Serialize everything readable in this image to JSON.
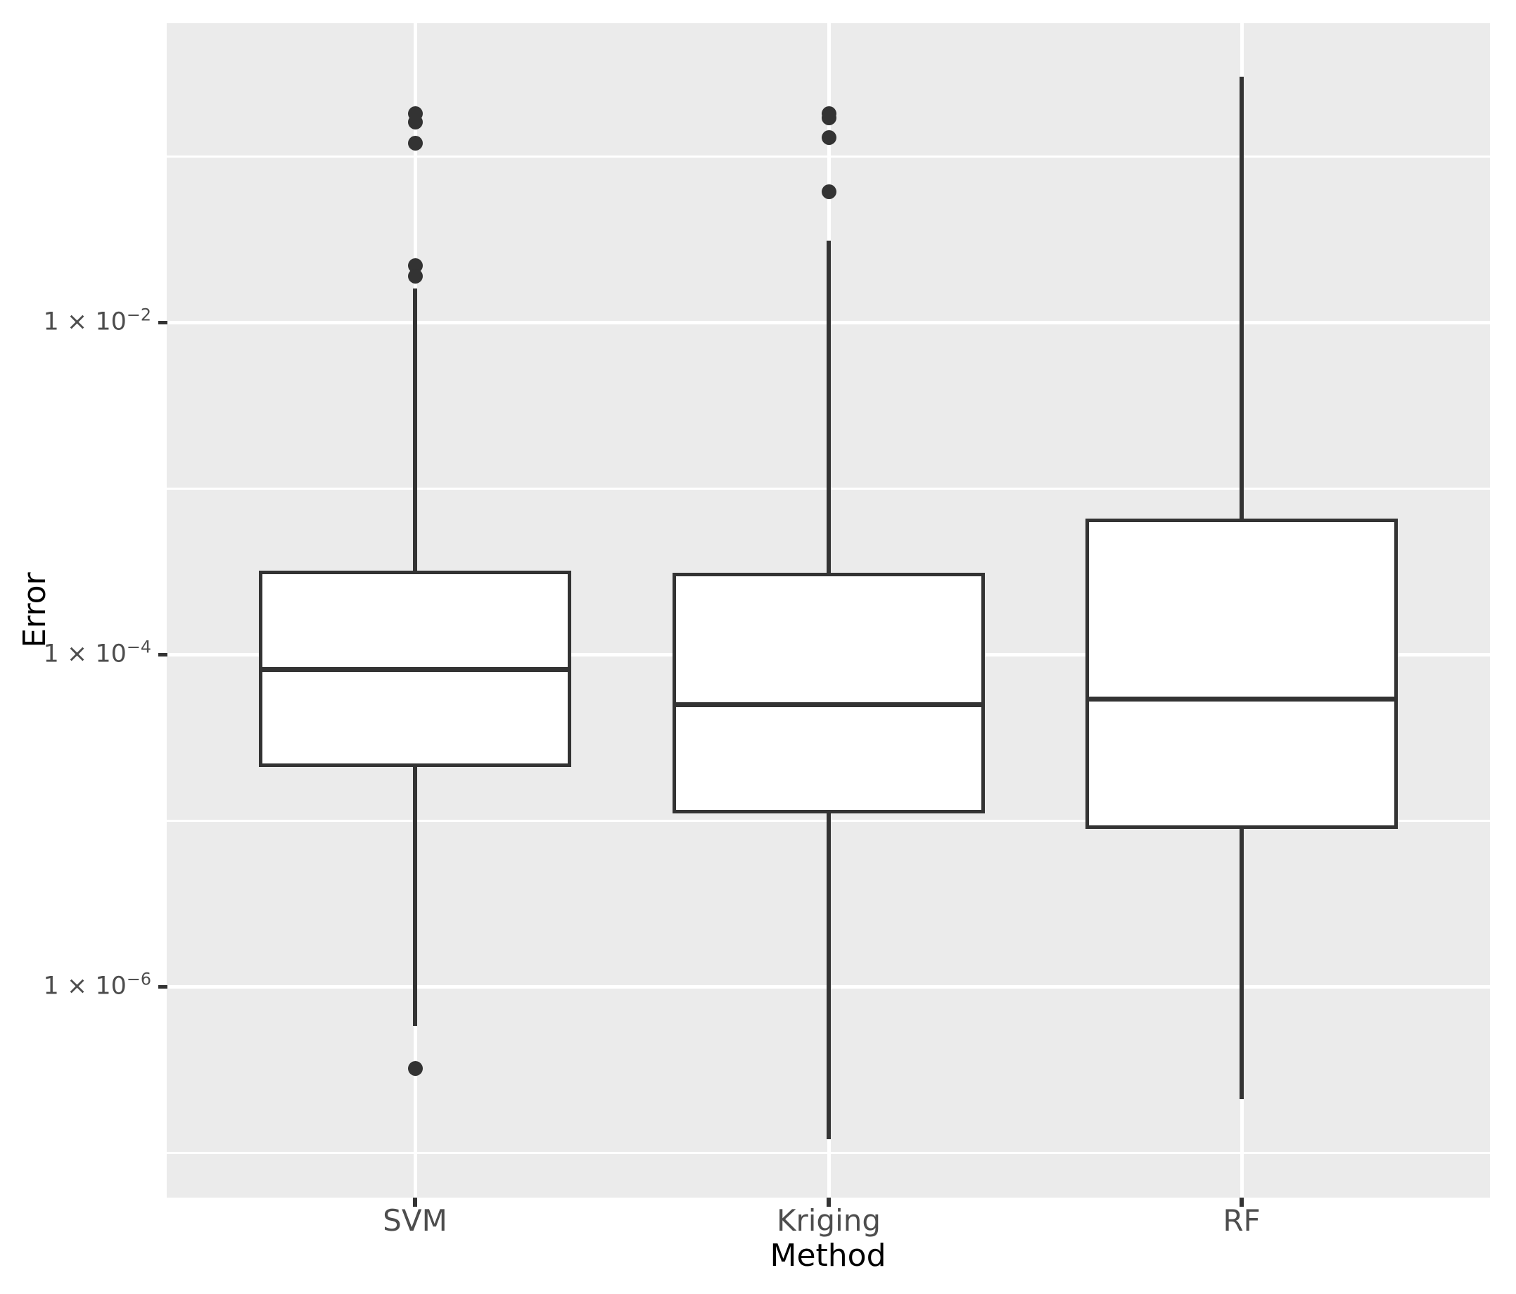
{
  "chart_data": {
    "type": "boxplot",
    "title": "",
    "xlabel": "Method",
    "ylabel": "Error",
    "x_axis": {
      "categories": [
        "SVM",
        "Kriging",
        "RF"
      ]
    },
    "y_axis": {
      "scale": "log10",
      "ticks": [
        {
          "label": "1 × 10^−2",
          "value": 0.01
        },
        {
          "label": "1 × 10^−4",
          "value": 0.0001
        },
        {
          "label": "1 × 10^−6",
          "value": 1e-06
        }
      ],
      "minor_gridline_values": [
        0.1,
        0.001,
        1e-05,
        1e-07
      ],
      "ylim_approx": [
        3e-08,
        0.63
      ],
      "grid": "major-and-minor"
    },
    "series": [
      {
        "name": "SVM",
        "whisker_low": 5.8e-07,
        "q1": 2.1e-05,
        "median": 8.1e-05,
        "q3": 0.00032,
        "whisker_high": 0.016,
        "outliers_high": [
          0.18,
          0.16,
          0.12,
          0.022,
          0.019
        ],
        "outliers_low": [
          3.2e-07
        ]
      },
      {
        "name": "Kriging",
        "whisker_low": 1.2e-07,
        "q1": 1.1e-05,
        "median": 5e-05,
        "q3": 0.00031,
        "whisker_high": 0.031,
        "outliers_high": [
          0.18,
          0.17,
          0.13,
          0.061
        ],
        "outliers_low": []
      },
      {
        "name": "RF",
        "whisker_low": 2.1e-07,
        "q1": 8.9e-06,
        "median": 5.4e-05,
        "q3": 0.00066,
        "whisker_high": 0.3,
        "outliers_high": [],
        "outliers_low": []
      }
    ]
  },
  "colors": {
    "panel_background": "#EBEBEB",
    "gridline": "#FFFFFF",
    "box_stroke": "#333333",
    "box_fill": "#FFFFFF",
    "outlier": "#333333",
    "tick_label": "#4D4D4D",
    "axis_title": "#000000",
    "page_background": "#FFFFFF"
  }
}
